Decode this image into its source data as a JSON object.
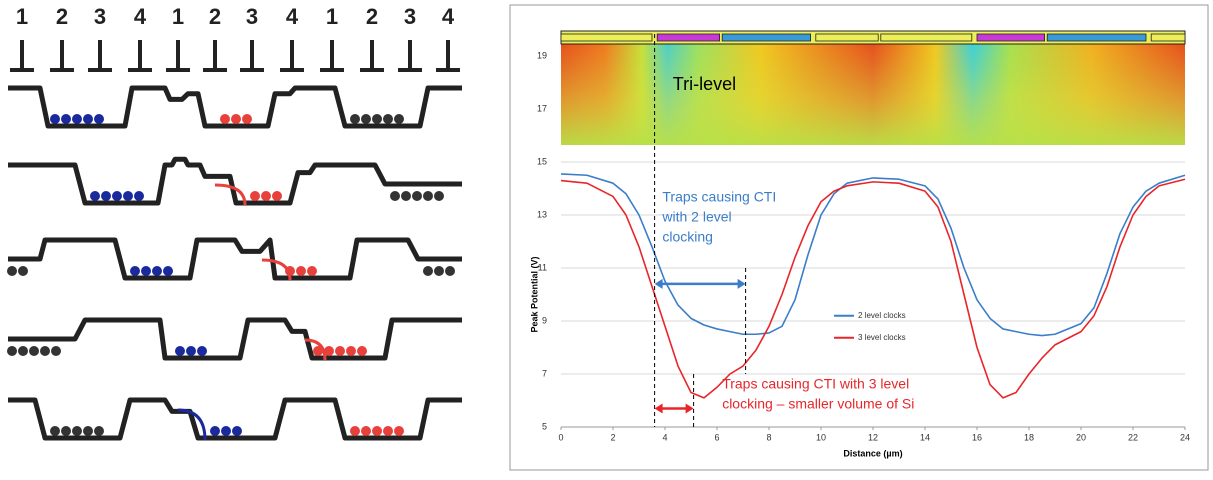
{
  "diagram": {
    "clock_labels": [
      "1",
      "2",
      "3",
      "4",
      "1",
      "2",
      "3",
      "4",
      "1",
      "2",
      "3",
      "4"
    ]
  },
  "chart_data": {
    "type": "line",
    "x_label": "Distance (µm)",
    "y_label": "Peak Potential (V)",
    "x": [
      0,
      1,
      2,
      2.5,
      3,
      3.5,
      4,
      4.5,
      5,
      5.5,
      6,
      6.5,
      7,
      7.5,
      8,
      8.5,
      9,
      9.5,
      10,
      10.5,
      11,
      12,
      13,
      14,
      14.5,
      15,
      15.5,
      16,
      16.5,
      17,
      17.5,
      18,
      18.5,
      19,
      20,
      20.5,
      21,
      21.5,
      22,
      22.5,
      23,
      24
    ],
    "series": [
      {
        "name": "2 level clocks",
        "color": "#3a7dc9",
        "values": [
          14.55,
          14.5,
          14.2,
          13.8,
          13,
          11.8,
          10.5,
          9.6,
          9.1,
          8.85,
          8.7,
          8.6,
          8.5,
          8.5,
          8.55,
          8.8,
          9.8,
          11.5,
          13,
          13.8,
          14.2,
          14.4,
          14.35,
          14.1,
          13.6,
          12.5,
          11,
          9.8,
          9.1,
          8.7,
          8.6,
          8.5,
          8.45,
          8.5,
          8.9,
          9.5,
          10.8,
          12.3,
          13.3,
          13.9,
          14.2,
          14.5
        ]
      },
      {
        "name": "3 level clocks",
        "color": "#e8262a",
        "values": [
          14.3,
          14.2,
          13.7,
          13,
          11.8,
          10.3,
          8.8,
          7.3,
          6.3,
          6.1,
          6.5,
          7,
          7.3,
          7.9,
          8.8,
          10,
          11.4,
          12.6,
          13.5,
          13.9,
          14.1,
          14.25,
          14.2,
          13.9,
          13.3,
          12,
          10,
          8,
          6.6,
          6.1,
          6.3,
          7,
          7.6,
          8.1,
          8.6,
          9.2,
          10.3,
          11.8,
          13,
          13.7,
          14.1,
          14.35
        ]
      }
    ],
    "xlim": [
      0,
      24
    ],
    "xticks": [
      0,
      2,
      4,
      6,
      8,
      10,
      12,
      14,
      16,
      18,
      20,
      22,
      24
    ],
    "ylim": [
      5,
      20
    ],
    "yticks": [
      5,
      7,
      9,
      11,
      13,
      15,
      17,
      19
    ],
    "grid": true,
    "legend": "center",
    "annotations": [
      {
        "text": [
          "Tri-level"
        ],
        "color": "#000000"
      },
      {
        "text": [
          "Traps causing CTI",
          "with 2 level",
          "clocking"
        ],
        "color": "#3a7dc9"
      },
      {
        "text": [
          "Traps causing CTI with 3 level",
          "clocking – smaller volume of Si"
        ],
        "color": "#e8262a"
      }
    ]
  }
}
